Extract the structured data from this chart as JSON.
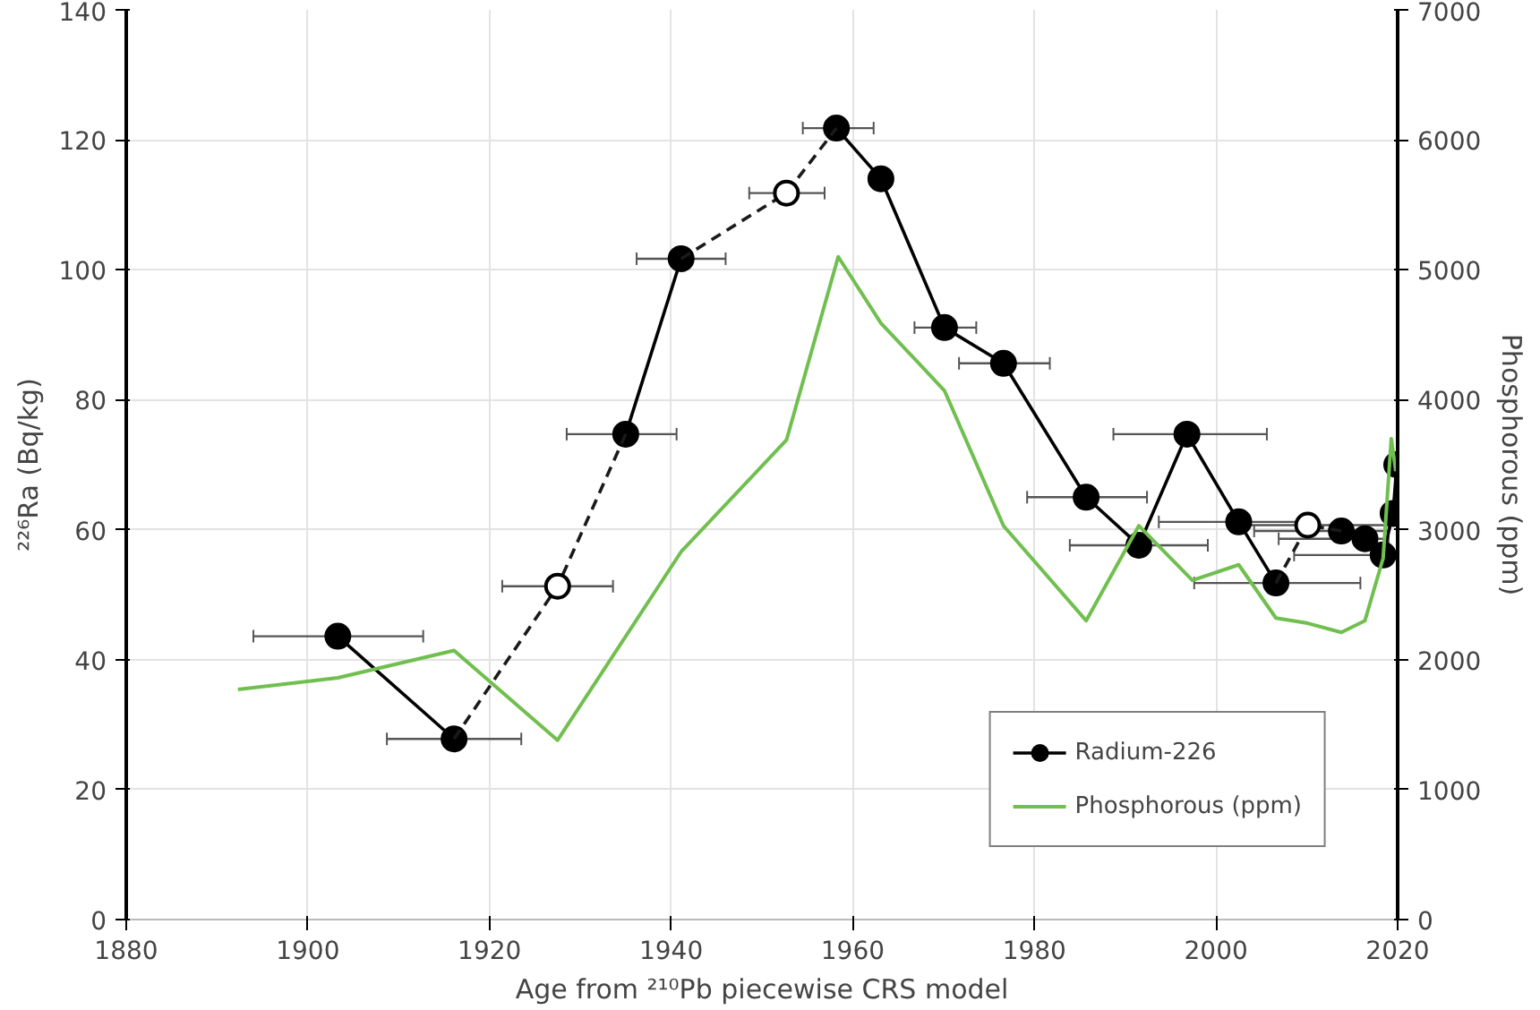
{
  "chart_data": {
    "type": "line",
    "xlabel": "Age from ²¹⁰Pb piecewise CRS model",
    "ylabel": "²²⁶Ra (Bq/kg)",
    "y2label": "Phosphorous (ppm)",
    "xlim": [
      1880,
      2020
    ],
    "xticks": [
      1880,
      1900,
      1920,
      1940,
      1960,
      1980,
      2000,
      2020
    ],
    "ylim": [
      0,
      140
    ],
    "yticks": [
      0,
      20,
      40,
      60,
      80,
      100,
      120,
      140
    ],
    "y2lim": [
      0,
      7000
    ],
    "y2ticks": [
      0,
      1000,
      2000,
      3000,
      4000,
      5000,
      6000,
      7000
    ],
    "grid": true,
    "legend": "bottom right",
    "series": [
      {
        "name": "Radium-226",
        "color": "#000000",
        "marker": "circle",
        "line_style": "solid",
        "x": [
          1903.3,
          1916.1,
          1927.5,
          1935.0,
          1941.1,
          1952.7,
          1958.2,
          1963.1,
          1970.1,
          1976.6,
          1985.7,
          1991.5,
          1996.8,
          2002.5,
          2006.6,
          2010.1,
          2013.8,
          2016.4,
          2018.4,
          2019.5,
          2019.9
        ],
        "values": [
          43.6,
          27.8,
          null,
          74.7,
          101.7,
          null,
          121.8,
          114.0,
          91.1,
          85.6,
          65.0,
          57.6,
          74.7,
          61.2,
          51.8,
          null,
          59.8,
          58.6,
          56.1,
          62.5,
          70.0
        ],
        "xerrors": [
          [
            1894.0,
            1912.7
          ],
          [
            1908.7,
            1923.5
          ],
          null,
          [
            1928.5,
            1940.6
          ],
          [
            1936.2,
            1946.0
          ],
          null,
          [
            1954.5,
            1962.3
          ],
          null,
          [
            1966.8,
            1973.6
          ],
          [
            1971.7,
            1981.7
          ],
          [
            1979.2,
            1992.4
          ],
          [
            1983.9,
            1999.1
          ],
          [
            1988.7,
            2005.6
          ],
          [
            1993.7,
            2011.0
          ],
          [
            1997.6,
            2015.9
          ],
          null,
          [
            2004.2,
            2019.0
          ],
          [
            2006.9,
            2019.0
          ],
          [
            2008.6,
            2018.1
          ],
          null,
          null
        ]
      },
      {
        "color": "#1a1a1a",
        "marker": "none",
        "line_style": "dashed",
        "x": [
          1916.1,
          1927.5,
          1935.0,
          null,
          1941.1,
          1952.7,
          1958.2,
          null,
          2006.6,
          2010.1,
          2013.8
        ],
        "values": [
          27.8,
          51.3,
          74.7,
          null,
          101.7,
          111.8,
          121.8,
          null,
          51.8,
          60.7,
          59.8
        ]
      },
      {
        "type": "scatter",
        "color": "#ffffff",
        "marker": "circle",
        "x": [
          1927.5,
          1952.7,
          2010.1
        ],
        "values": [
          51.3,
          111.8,
          60.7
        ],
        "xerrors": [
          [
            1921.4,
            1933.6
          ],
          [
            1948.6,
            1956.9
          ],
          [
            2003.0,
            2019.0
          ]
        ]
      },
      {
        "name": "Phosphorous (ppm)",
        "axis": "y2",
        "color": "#70bf4f",
        "marker": "none",
        "line_style": "solid",
        "x": [
          1892.3,
          1903.3,
          1916.1,
          1927.5,
          1941.1,
          1952.7,
          1958.4,
          1963.1,
          1970.1,
          1976.6,
          1985.7,
          1991.5,
          1997.4,
          2002.5,
          2006.6,
          2010.1,
          2013.8,
          2016.4,
          2018.4,
          2019.3,
          2019.8
        ],
        "values": [
          1770,
          1860,
          2070,
          1380,
          2830,
          3690,
          5100,
          4590,
          4070,
          3030,
          2300,
          3030,
          2610,
          2730,
          2320,
          2280,
          2210,
          2300,
          2780,
          3700,
          3450
        ]
      }
    ]
  }
}
